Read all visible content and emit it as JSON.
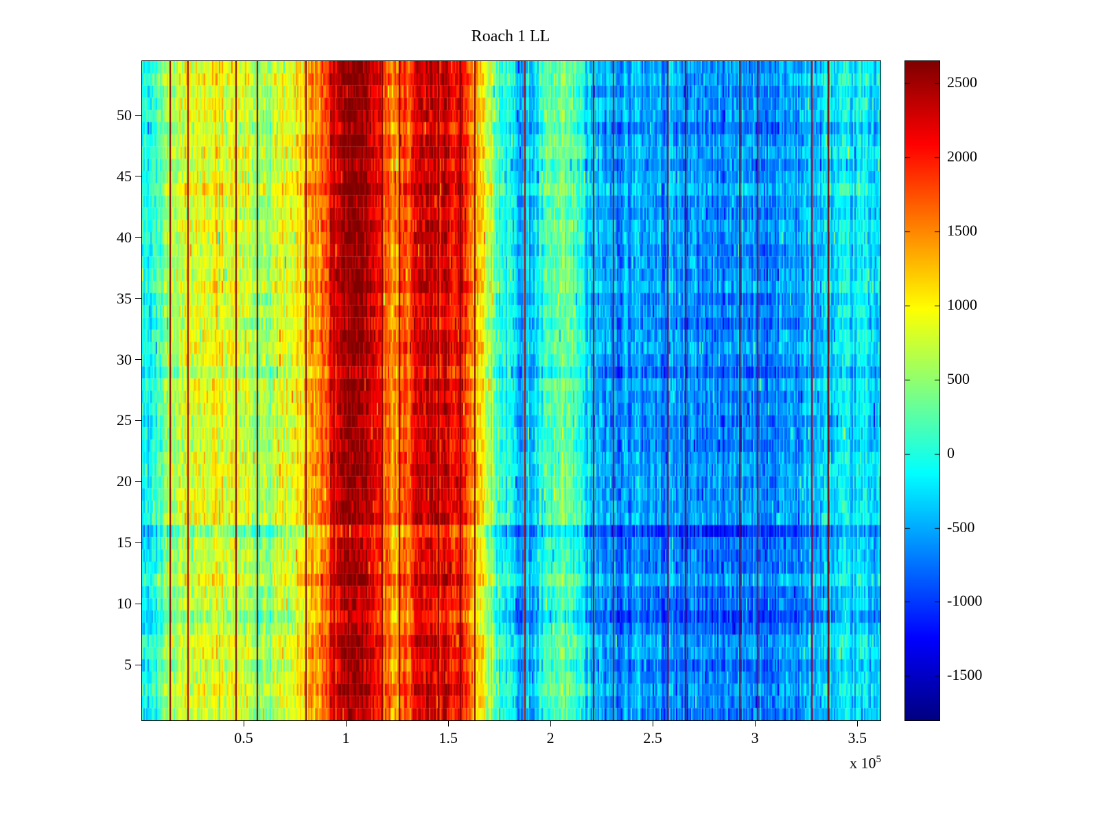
{
  "background": "#ffffff",
  "chart_data": {
    "type": "heatmap",
    "title": "Roach 1 LL",
    "colormap": "jet",
    "x_axis": {
      "range": [
        0,
        3.61
      ],
      "tick_values": [
        0.5,
        1,
        1.5,
        2,
        2.5,
        3,
        3.5
      ],
      "tick_labels": [
        "0.5",
        "1",
        "1.5",
        "2",
        "2.5",
        "3",
        "3.5"
      ],
      "scale_base": "x 10",
      "scale_exp": "5"
    },
    "y_axis": {
      "range": [
        0.5,
        54.5
      ],
      "tick_values": [
        5,
        10,
        15,
        20,
        25,
        30,
        35,
        40,
        45,
        50
      ],
      "tick_labels": [
        "5",
        "10",
        "15",
        "20",
        "25",
        "30",
        "35",
        "40",
        "45",
        "50"
      ]
    },
    "colorbar": {
      "range": [
        -1800,
        2650
      ],
      "tick_values": [
        2500,
        2000,
        1500,
        1000,
        500,
        0,
        -500,
        -1000,
        -1500
      ],
      "tick_labels": [
        "2500",
        "2000",
        "1500",
        "1000",
        "500",
        "0",
        "-500",
        "-1000",
        "-1500"
      ]
    },
    "rows": 54,
    "cols": 538,
    "x_profile": {
      "x_start": 0.025,
      "x_step": 0.05,
      "values": [
        -100,
        100,
        600,
        800,
        900,
        850,
        900,
        950,
        900,
        800,
        700,
        400,
        600,
        800,
        900,
        1000,
        1300,
        1600,
        2100,
        2500,
        2600,
        2600,
        2400,
        1800,
        1400,
        1600,
        2000,
        2200,
        2300,
        2200,
        2200,
        2000,
        1400,
        1000,
        300,
        0,
        -300,
        -400,
        -300,
        100,
        200,
        250,
        100,
        -300,
        -500,
        -550,
        -600,
        -550,
        -500,
        -550,
        -600,
        -550,
        -600,
        -650,
        -600,
        -650,
        -700,
        -650,
        -600,
        -650,
        -700,
        -650,
        -600,
        -550,
        -500,
        -450,
        -400,
        -350,
        -300,
        -250,
        -200,
        -250
      ]
    },
    "row_offsets": {
      "9": -350,
      "16": -500,
      "24": -150,
      "29": -250,
      "44": 100
    },
    "noise": {
      "cell": 300,
      "column": 260,
      "row": 140
    },
    "vertical_lines": [
      {
        "x": 0.135,
        "v": 2600
      },
      {
        "x": 0.22,
        "v": 2500
      },
      {
        "x": 0.455,
        "v": 2600
      },
      {
        "x": 0.56,
        "v": 2600
      },
      {
        "x": 0.8,
        "v": 2600
      },
      {
        "x": 0.935,
        "v": 2400
      },
      {
        "x": 1.17,
        "v": 2600
      },
      {
        "x": 1.255,
        "v": 2600
      },
      {
        "x": 1.445,
        "v": 2600
      },
      {
        "x": 1.555,
        "v": 2600
      },
      {
        "x": 1.625,
        "v": 2600
      },
      {
        "x": 1.87,
        "v": 2400
      },
      {
        "x": 2.205,
        "v": 2600
      },
      {
        "x": 2.3,
        "v": 2400
      },
      {
        "x": 2.565,
        "v": 2400
      },
      {
        "x": 2.655,
        "v": 2600
      },
      {
        "x": 2.92,
        "v": 2600
      },
      {
        "x": 3.005,
        "v": 2400
      },
      {
        "x": 3.27,
        "v": 2300
      },
      {
        "x": 3.35,
        "v": 2600
      }
    ]
  }
}
